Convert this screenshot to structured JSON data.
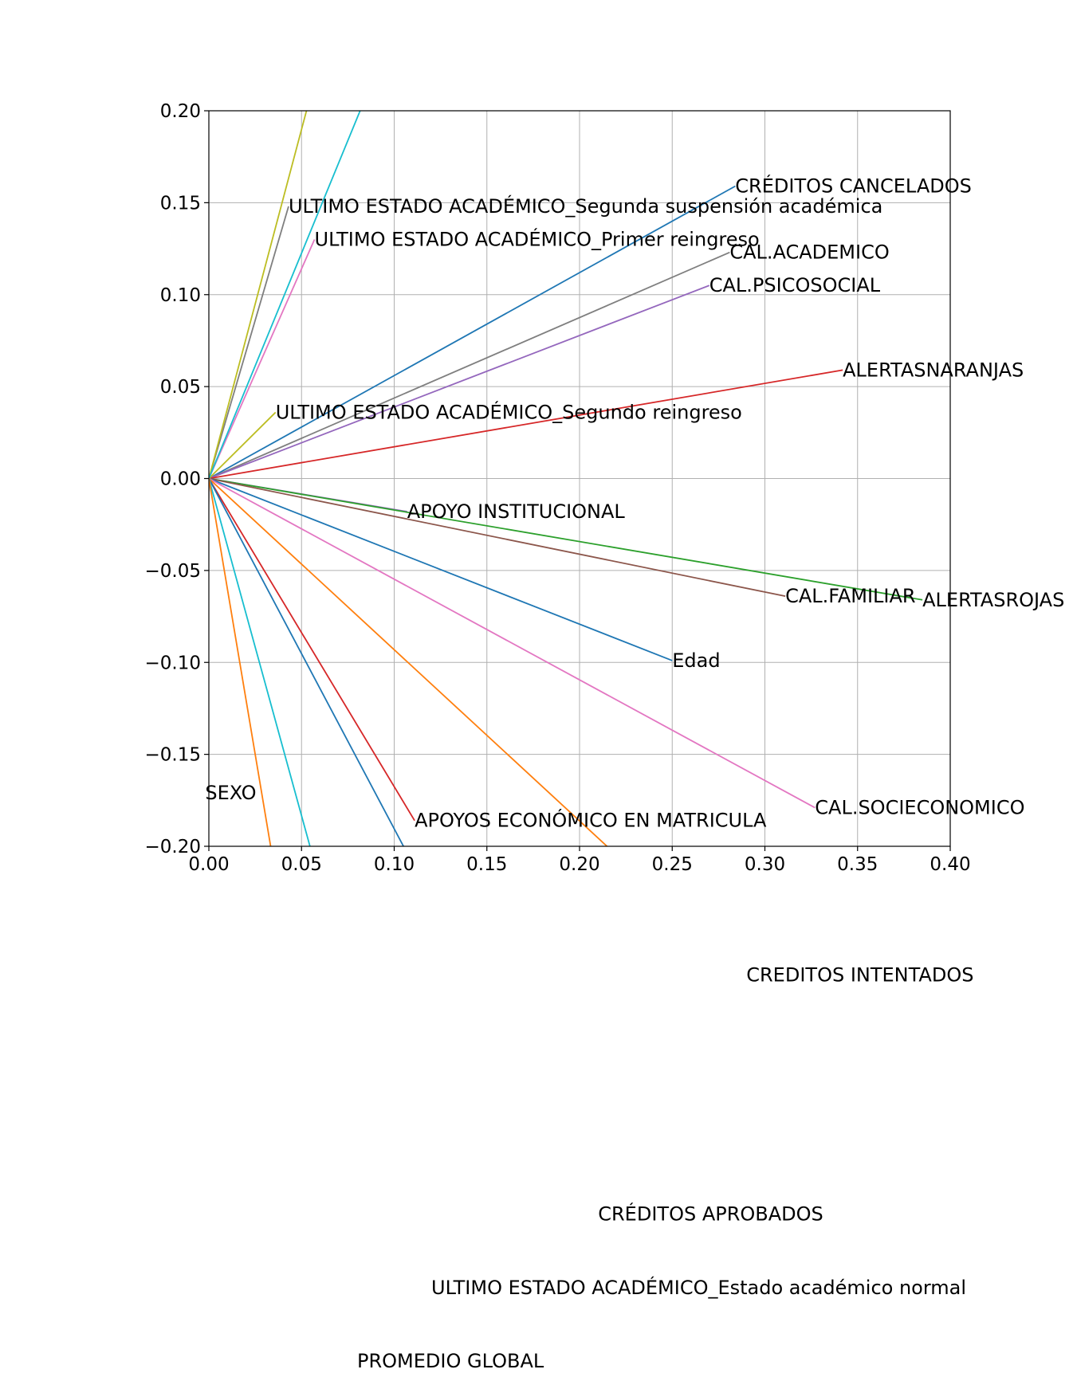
{
  "chart_data": {
    "type": "line",
    "title": "",
    "xlabel": "",
    "ylabel": "",
    "xlim": [
      0.0,
      0.4
    ],
    "ylim": [
      -0.2,
      0.2
    ],
    "grid": true,
    "legend": "none",
    "x_ticks": [
      "0.00",
      "0.05",
      "0.10",
      "0.15",
      "0.20",
      "0.25",
      "0.30",
      "0.35",
      "0.40"
    ],
    "y_ticks": [
      "0.20",
      "0.15",
      "0.10",
      "0.05",
      "0.00",
      "−0.05",
      "−0.10",
      "−0.15",
      "−0.20"
    ],
    "series": [
      {
        "label": "CRÉDITOS CANCELADOS",
        "x": 0.284,
        "y": 0.159,
        "color": "#1f77b4"
      },
      {
        "label": "CAL.ACADEMICO",
        "x": 0.281,
        "y": 0.123,
        "color": "#7f7f7f"
      },
      {
        "label": "CAL.PSICOSOCIAL",
        "x": 0.27,
        "y": 0.105,
        "color": "#9467bd"
      },
      {
        "label": "ALERTASNARANJAS",
        "x": 0.342,
        "y": 0.059,
        "color": "#d62728"
      },
      {
        "label": "ULTIMO ESTADO ACADÉMICO_Segunda suspensión académica",
        "x": 0.043,
        "y": 0.148,
        "color": "#7f7f7f"
      },
      {
        "label": "ULTIMO ESTADO ACADÉMICO_Primer reingreso",
        "x": 0.057,
        "y": 0.13,
        "color": "#e377c2"
      },
      {
        "label": "ULTIMO ESTADO ACADÉMICO_Segundo reingreso",
        "x": 0.036,
        "y": 0.036,
        "color": "#bcbd22"
      },
      {
        "label": "ULTIMO ESTADO ACADÉMICO_Suspensión académica",
        "x": 0.133,
        "y": 0.505,
        "color": "#bcbd22"
      },
      {
        "label": "CRÉDITOS REPROBADOS",
        "x": 0.204,
        "y": 0.5,
        "color": "#17becf"
      },
      {
        "label": "APOYO INSTITUCIONAL",
        "x": 0.107,
        "y": -0.018,
        "color": "#9467bd"
      },
      {
        "label": "ALERTASROJAS",
        "x": 0.385,
        "y": -0.066,
        "color": "#2ca02c"
      },
      {
        "label": "CAL.FAMILIAR",
        "x": 0.311,
        "y": -0.064,
        "color": "#8c564b"
      },
      {
        "label": "Edad",
        "x": 0.25,
        "y": -0.099,
        "color": "#1f77b4"
      },
      {
        "label": "CAL.SOCIECONOMICO",
        "x": 0.327,
        "y": -0.179,
        "color": "#e377c2"
      },
      {
        "label": "APOYOS ECONÓMICO EN MATRICULA",
        "x": 0.111,
        "y": -0.186,
        "color": "#d62728"
      },
      {
        "label": "SEXO",
        "x": -0.002,
        "y": -0.171,
        "color": "#8c564b"
      },
      {
        "label": "CREDITOS INTENTADOS",
        "x": 0.29,
        "y": -0.27,
        "color": "#ff7f0e"
      },
      {
        "label": "CRÉDITOS APROBADOS",
        "x": 0.21,
        "y": -0.4,
        "color": "#1f77b4"
      },
      {
        "label": "ULTIMO ESTADO ACADÉMICO_Estado académico normal",
        "x": 0.12,
        "y": -0.44,
        "color": "#17becf"
      },
      {
        "label": "PROMEDIO GLOBAL",
        "x": 0.08,
        "y": -0.48,
        "color": "#ff7f0e"
      }
    ]
  }
}
